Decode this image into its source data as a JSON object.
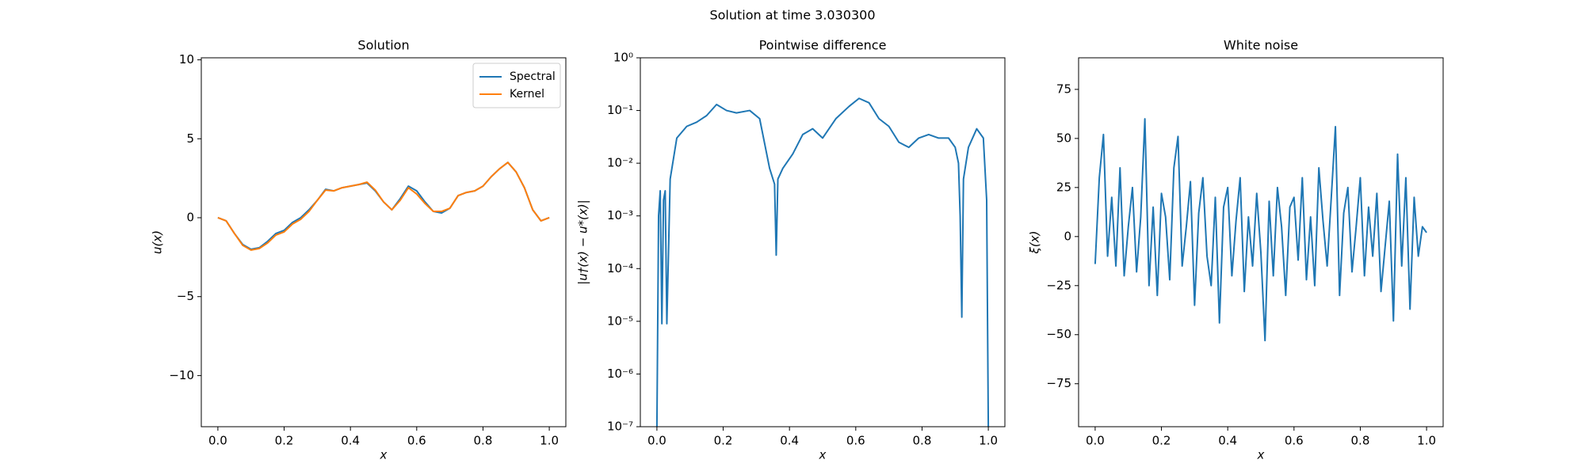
{
  "title": "Solution at time 3.030300",
  "chart_data": [
    {
      "type": "line",
      "title": "Solution",
      "x_label": "x",
      "y_label": "u(x)",
      "legend": "upper right",
      "xlim": [
        -0.05,
        1.05
      ],
      "ylim": [
        -13.24,
        10.13
      ],
      "xticks": [
        {
          "value": 0,
          "label": "0.0"
        },
        0.2,
        0.4,
        0.6,
        0.8,
        {
          "value": 1,
          "label": "1.0"
        }
      ],
      "yticks": [
        {
          "value": -10,
          "label": "−10"
        },
        {
          "value": -5,
          "label": "−5"
        },
        0,
        5,
        10
      ],
      "x": [
        0,
        0.025,
        0.05,
        0.075,
        0.1,
        0.125,
        0.15,
        0.175,
        0.2,
        0.225,
        0.25,
        0.275,
        0.3,
        0.325,
        0.35,
        0.375,
        0.4,
        0.425,
        0.45,
        0.475,
        0.5,
        0.525,
        0.55,
        0.575,
        0.6,
        0.625,
        0.65,
        0.675,
        0.7,
        0.725,
        0.75,
        0.775,
        0.8,
        0.825,
        0.85,
        0.875,
        0.9,
        0.925,
        0.95,
        0.975,
        1.0
      ],
      "series": [
        {
          "name": "Spectral",
          "color": "#1f77b4",
          "values": [
            0,
            -0.2,
            -1.0,
            -1.7,
            -2.0,
            -1.9,
            -1.5,
            -1.0,
            -0.8,
            -0.3,
            0,
            0.5,
            1.1,
            1.8,
            1.7,
            1.9,
            2.0,
            2.1,
            2.2,
            1.7,
            1.0,
            0.5,
            1.2,
            2.0,
            1.7,
            1.0,
            0.4,
            0.3,
            0.6,
            1.4,
            1.6,
            1.7,
            2.0,
            2.6,
            3.1,
            3.5,
            2.9,
            1.9,
            0.5,
            -0.2,
            0
          ]
        },
        {
          "name": "Kernel",
          "color": "#ff7f0e",
          "values": [
            0,
            -0.2,
            -1.0,
            -1.75,
            -2.05,
            -1.95,
            -1.6,
            -1.1,
            -0.9,
            -0.4,
            -0.1,
            0.4,
            1.1,
            1.75,
            1.7,
            1.9,
            2.0,
            2.1,
            2.25,
            1.75,
            1.0,
            0.5,
            1.1,
            1.9,
            1.5,
            0.9,
            0.4,
            0.4,
            0.6,
            1.4,
            1.6,
            1.7,
            2.0,
            2.6,
            3.1,
            3.5,
            2.9,
            1.9,
            0.5,
            -0.2,
            0
          ]
        }
      ]
    },
    {
      "type": "line",
      "title": "Pointwise difference",
      "x_label": "x",
      "y_label": "|u†(x) − u*(x)|",
      "yscale": "log",
      "xlim": [
        -0.05,
        1.05
      ],
      "ylim": [
        1e-07,
        1
      ],
      "xticks": [
        {
          "value": 0,
          "label": "0.0"
        },
        0.2,
        0.4,
        0.6,
        0.8,
        {
          "value": 1,
          "label": "1.0"
        }
      ],
      "yticks": [
        {
          "value": 1e-07,
          "label": "10⁻⁷"
        },
        {
          "value": 1e-06,
          "label": "10⁻⁶"
        },
        {
          "value": 1e-05,
          "label": "10⁻⁵"
        },
        {
          "value": 0.0001,
          "label": "10⁻⁴"
        },
        {
          "value": 0.001,
          "label": "10⁻³"
        },
        {
          "value": 0.01,
          "label": "10⁻²"
        },
        {
          "value": 0.1,
          "label": "10⁻¹"
        },
        {
          "value": 1,
          "label": "10⁰"
        }
      ],
      "x": [
        0,
        0.005,
        0.01,
        0.015,
        0.02,
        0.025,
        0.03,
        0.04,
        0.06,
        0.09,
        0.12,
        0.15,
        0.18,
        0.21,
        0.24,
        0.28,
        0.31,
        0.34,
        0.355,
        0.36,
        0.365,
        0.38,
        0.41,
        0.44,
        0.47,
        0.5,
        0.54,
        0.58,
        0.61,
        0.64,
        0.67,
        0.7,
        0.73,
        0.76,
        0.79,
        0.82,
        0.85,
        0.88,
        0.9,
        0.91,
        0.915,
        0.92,
        0.925,
        0.94,
        0.965,
        0.985,
        0.995,
        1.0
      ],
      "series": [
        {
          "color": "#1f77b4",
          "values": [
            1e-07,
            0.001,
            0.003,
            9e-06,
            0.002,
            0.003,
            9e-06,
            0.005,
            0.03,
            0.05,
            0.06,
            0.08,
            0.13,
            0.1,
            0.09,
            0.1,
            0.07,
            0.008,
            0.004,
            0.00018,
            0.005,
            0.008,
            0.015,
            0.035,
            0.045,
            0.03,
            0.07,
            0.12,
            0.17,
            0.14,
            0.07,
            0.05,
            0.025,
            0.02,
            0.03,
            0.035,
            0.03,
            0.03,
            0.02,
            0.01,
            0.001,
            1.2e-05,
            0.005,
            0.02,
            0.045,
            0.03,
            0.002,
            1e-07
          ]
        }
      ]
    },
    {
      "type": "line",
      "title": "White noise",
      "x_label": "x",
      "y_label": "ξ(x)",
      "xlim": [
        -0.05,
        1.05
      ],
      "ylim": [
        -96.9,
        91.1
      ],
      "xticks": [
        {
          "value": 0,
          "label": "0.0"
        },
        0.2,
        0.4,
        0.6,
        0.8,
        {
          "value": 1,
          "label": "1.0"
        }
      ],
      "yticks": [
        {
          "value": -75,
          "label": "−75"
        },
        {
          "value": -50,
          "label": "−50"
        },
        {
          "value": -25,
          "label": "−25"
        },
        0,
        25,
        50,
        75
      ],
      "x": [
        0,
        0.0125,
        0.025,
        0.0375,
        0.05,
        0.0625,
        0.075,
        0.0875,
        0.1,
        0.1125,
        0.125,
        0.1375,
        0.15,
        0.1625,
        0.175,
        0.1875,
        0.2,
        0.2125,
        0.225,
        0.2375,
        0.25,
        0.2625,
        0.275,
        0.2875,
        0.3,
        0.3125,
        0.325,
        0.3375,
        0.35,
        0.3625,
        0.375,
        0.3875,
        0.4,
        0.4125,
        0.425,
        0.4375,
        0.45,
        0.4625,
        0.475,
        0.4875,
        0.5,
        0.5125,
        0.525,
        0.5375,
        0.55,
        0.5625,
        0.575,
        0.5875,
        0.6,
        0.6125,
        0.625,
        0.6375,
        0.65,
        0.6625,
        0.675,
        0.6875,
        0.7,
        0.7125,
        0.725,
        0.7375,
        0.75,
        0.7625,
        0.775,
        0.7875,
        0.8,
        0.8125,
        0.825,
        0.8375,
        0.85,
        0.8625,
        0.875,
        0.8875,
        0.9,
        0.9125,
        0.925,
        0.9375,
        0.95,
        0.9625,
        0.975,
        0.9875,
        1.0
      ],
      "series": [
        {
          "color": "#1f77b4",
          "values": [
            -14,
            30,
            52,
            -10,
            20,
            -15,
            35,
            -20,
            5,
            25,
            -18,
            10,
            60,
            -25,
            15,
            -30,
            22,
            10,
            -22,
            35,
            51,
            -15,
            5,
            28,
            -35,
            12,
            30,
            -10,
            -25,
            20,
            -44,
            15,
            25,
            -20,
            8,
            30,
            -28,
            10,
            -15,
            22,
            -8,
            -53,
            18,
            -20,
            25,
            5,
            -30,
            15,
            20,
            -12,
            30,
            -22,
            10,
            -25,
            35,
            8,
            -15,
            20,
            56,
            -30,
            12,
            25,
            -18,
            5,
            30,
            -20,
            15,
            -10,
            22,
            -28,
            -5,
            18,
            -43,
            42,
            -15,
            30,
            -37,
            20,
            -10,
            5,
            2
          ]
        }
      ]
    }
  ]
}
